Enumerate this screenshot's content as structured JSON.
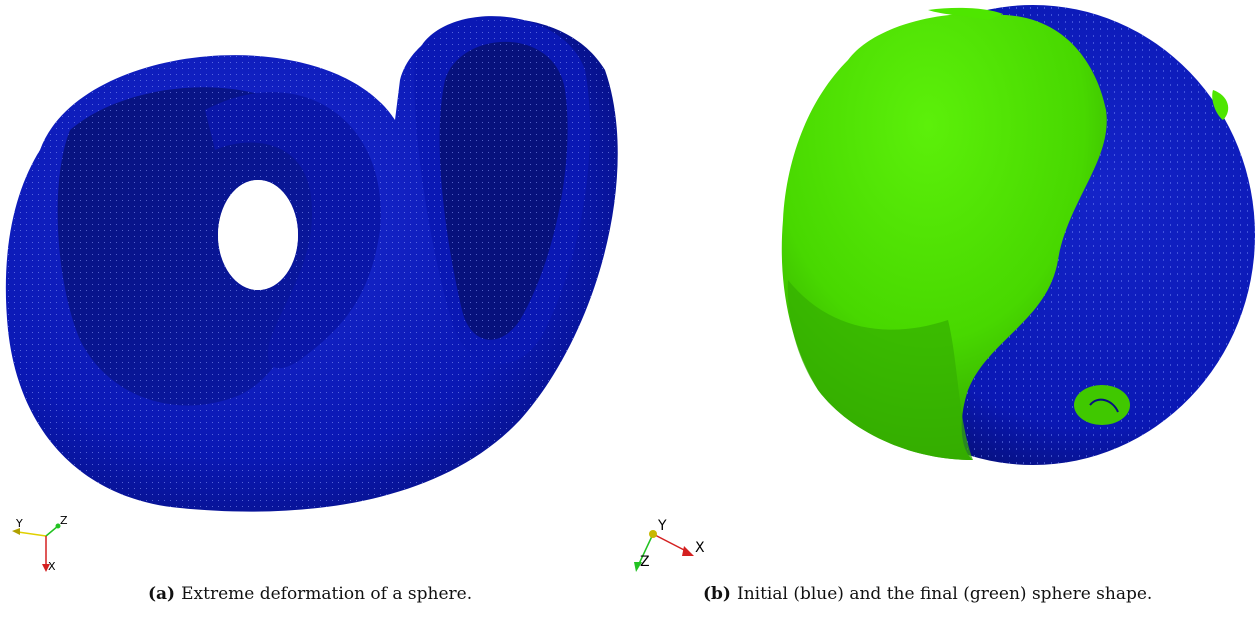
{
  "figure": {
    "panel_a": {
      "tag": "(a)",
      "caption": "Extreme deformation of a sphere.",
      "axes": {
        "first": "Y",
        "second": "Z",
        "third": "X"
      }
    },
    "panel_b": {
      "tag": "(b)",
      "caption": "Initial (blue) and the final (green) sphere shape.",
      "axes": {
        "first": "Y",
        "second": "X",
        "third": "Z"
      }
    },
    "colors": {
      "mesh_blue": "#0a18b4",
      "mesh_blue_dark": "#061070",
      "final_green": "#4ee600",
      "final_green_dark": "#2e9a00",
      "axis_red": "#d42020",
      "axis_green": "#22c222",
      "axis_yellow": "#e0d000"
    }
  }
}
